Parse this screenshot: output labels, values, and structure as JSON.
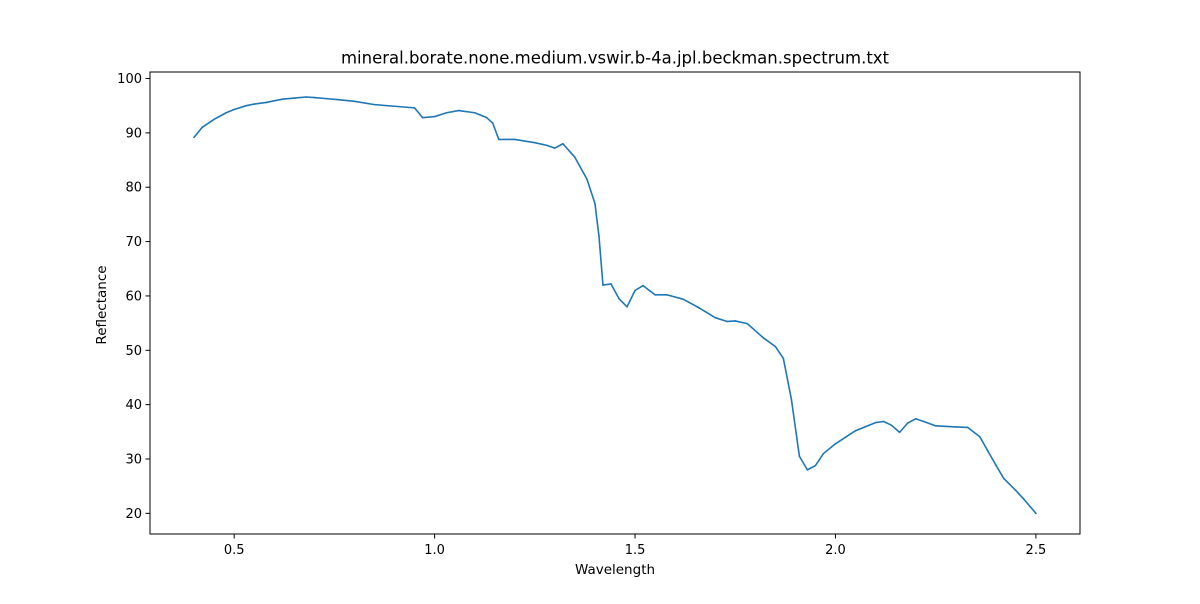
{
  "chart_data": {
    "type": "line",
    "title": "mineral.borate.none.medium.vswir.b-4a.jpl.beckman.spectrum.txt",
    "xlabel": "Wavelength",
    "ylabel": "Reflectance",
    "xlim": [
      0.29,
      2.61
    ],
    "ylim": [
      16.2,
      101.2
    ],
    "xticks": [
      0.5,
      1.0,
      1.5,
      2.0,
      2.5
    ],
    "xtick_labels": [
      "0.5",
      "1.0",
      "1.5",
      "2.0",
      "2.5"
    ],
    "yticks": [
      20,
      30,
      40,
      50,
      60,
      70,
      80,
      90,
      100
    ],
    "ytick_labels": [
      "20",
      "30",
      "40",
      "50",
      "60",
      "70",
      "80",
      "90",
      "100"
    ],
    "grid": false,
    "legend": "none",
    "series": [
      {
        "color": "#1f77b4",
        "x": [
          0.4,
          0.42,
          0.45,
          0.48,
          0.5,
          0.53,
          0.55,
          0.58,
          0.6,
          0.62,
          0.65,
          0.68,
          0.7,
          0.73,
          0.76,
          0.8,
          0.85,
          0.9,
          0.95,
          0.97,
          1.0,
          1.03,
          1.06,
          1.1,
          1.13,
          1.145,
          1.16,
          1.2,
          1.25,
          1.28,
          1.3,
          1.32,
          1.35,
          1.38,
          1.4,
          1.41,
          1.42,
          1.44,
          1.46,
          1.48,
          1.5,
          1.52,
          1.55,
          1.58,
          1.62,
          1.66,
          1.7,
          1.73,
          1.75,
          1.78,
          1.82,
          1.85,
          1.87,
          1.89,
          1.91,
          1.93,
          1.95,
          1.97,
          2.0,
          2.05,
          2.1,
          2.12,
          2.14,
          2.16,
          2.18,
          2.2,
          2.22,
          2.25,
          2.3,
          2.33,
          2.36,
          2.38,
          2.4,
          2.42,
          2.45,
          2.47,
          2.5
        ],
        "y": [
          89.2,
          91.0,
          92.5,
          93.7,
          94.3,
          95.0,
          95.3,
          95.6,
          95.9,
          96.2,
          96.4,
          96.6,
          96.5,
          96.3,
          96.1,
          95.8,
          95.2,
          94.9,
          94.6,
          92.8,
          93.0,
          93.7,
          94.1,
          93.7,
          92.8,
          91.8,
          88.8,
          88.8,
          88.2,
          87.7,
          87.2,
          88.0,
          85.5,
          81.5,
          77.0,
          71.0,
          62.0,
          62.2,
          59.5,
          58.0,
          61.0,
          61.9,
          60.2,
          60.2,
          59.4,
          57.8,
          56.0,
          55.3,
          55.4,
          54.9,
          52.3,
          50.7,
          48.5,
          41.0,
          30.5,
          28.0,
          28.8,
          31.0,
          32.8,
          35.2,
          36.7,
          36.9,
          36.2,
          34.9,
          36.6,
          37.4,
          36.9,
          36.1,
          35.9,
          35.8,
          34.1,
          31.5,
          28.9,
          26.4,
          24.2,
          22.6,
          20.0
        ]
      }
    ]
  }
}
